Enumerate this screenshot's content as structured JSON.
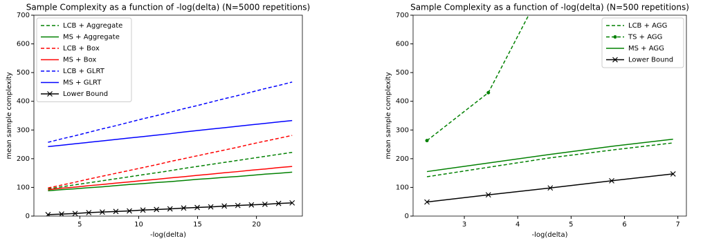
{
  "chart_data": [
    {
      "type": "line",
      "title": "Sample Complexity as a function of -log(delta) (N=5000 repetitions)",
      "xlabel": "-log(delta)",
      "ylabel": "mean sample complexity",
      "x": [
        2.3,
        3.45,
        4.6,
        5.76,
        6.91,
        8.06,
        9.21,
        10.36,
        11.51,
        12.66,
        13.82,
        14.97,
        16.12,
        17.27,
        18.42,
        19.57,
        20.72,
        21.88,
        23.03
      ],
      "xlim": [
        1.1,
        23.9
      ],
      "xticks": [
        5,
        10,
        15,
        20
      ],
      "ylim": [
        0,
        700
      ],
      "yticks": [
        0,
        100,
        200,
        300,
        400,
        500,
        600,
        700
      ],
      "legend": "upper left",
      "series": [
        {
          "name": "LCB + Aggregate",
          "color": "#008000",
          "linestyle": "dashed",
          "values": [
            95,
            102,
            109,
            116,
            123,
            130,
            137,
            144,
            151,
            158,
            166,
            173,
            180,
            187,
            194,
            201,
            208,
            215,
            222
          ]
        },
        {
          "name": "MS + Aggregate",
          "color": "#008000",
          "linestyle": "solid",
          "values": [
            88,
            92,
            95,
            99,
            102,
            106,
            110,
            113,
            117,
            120,
            124,
            128,
            131,
            135,
            138,
            142,
            146,
            149,
            153
          ]
        },
        {
          "name": "LCB + Box",
          "color": "#ff0000",
          "linestyle": "dashed",
          "values": [
            98,
            108,
            118,
            129,
            139,
            149,
            159,
            169,
            179,
            190,
            200,
            210,
            220,
            230,
            240,
            251,
            261,
            271,
            281
          ]
        },
        {
          "name": "MS + Box",
          "color": "#ff0000",
          "linestyle": "solid",
          "values": [
            92,
            97,
            101,
            106,
            110,
            115,
            119,
            124,
            128,
            133,
            137,
            142,
            146,
            151,
            155,
            160,
            164,
            169,
            173
          ]
        },
        {
          "name": "LCB + GLRT",
          "color": "#0000ff",
          "linestyle": "dashed",
          "values": [
            257,
            269,
            280,
            292,
            304,
            315,
            327,
            339,
            350,
            362,
            374,
            385,
            397,
            409,
            420,
            432,
            444,
            455,
            467
          ]
        },
        {
          "name": "MS + GLRT",
          "color": "#0000ff",
          "linestyle": "solid",
          "values": [
            242,
            247,
            252,
            257,
            262,
            267,
            272,
            277,
            282,
            287,
            293,
            298,
            303,
            308,
            313,
            318,
            323,
            328,
            333
          ]
        },
        {
          "name": "Lower Bound",
          "color": "#000000",
          "linestyle": "solid",
          "marker": "x",
          "values": [
            5,
            7,
            9,
            12,
            14,
            16,
            18,
            21,
            23,
            25,
            28,
            30,
            32,
            35,
            37,
            39,
            41,
            44,
            46
          ]
        }
      ]
    },
    {
      "type": "line",
      "title": "Sample Complexity as a function of -log(delta) (N=500 repetitions)",
      "xlabel": "-log(delta)",
      "ylabel": "mean sample complexity",
      "x": [
        2.3,
        3.45,
        4.61,
        5.76,
        6.91
      ],
      "xlim": [
        2.04,
        7.16
      ],
      "xticks": [
        3,
        4,
        5,
        6,
        7
      ],
      "ylim": [
        0,
        700
      ],
      "yticks": [
        0,
        100,
        200,
        300,
        400,
        500,
        600,
        700
      ],
      "legend": "upper right",
      "series": [
        {
          "name": "LCB + AGG",
          "color": "#008000",
          "linestyle": "dashed",
          "values": [
            137,
            170,
            203,
            230,
            255
          ]
        },
        {
          "name": "TS + AGG",
          "color": "#008000",
          "linestyle": "dashed",
          "marker": "o",
          "values": [
            263,
            430,
            845,
            null,
            null
          ]
        },
        {
          "name": "MS + AGG",
          "color": "#008000",
          "linestyle": "solid",
          "values": [
            155,
            185,
            215,
            243,
            268
          ]
        },
        {
          "name": "Lower Bound",
          "color": "#000000",
          "linestyle": "solid",
          "marker": "x",
          "values": [
            49,
            74,
            98,
            123,
            147
          ]
        }
      ]
    }
  ]
}
